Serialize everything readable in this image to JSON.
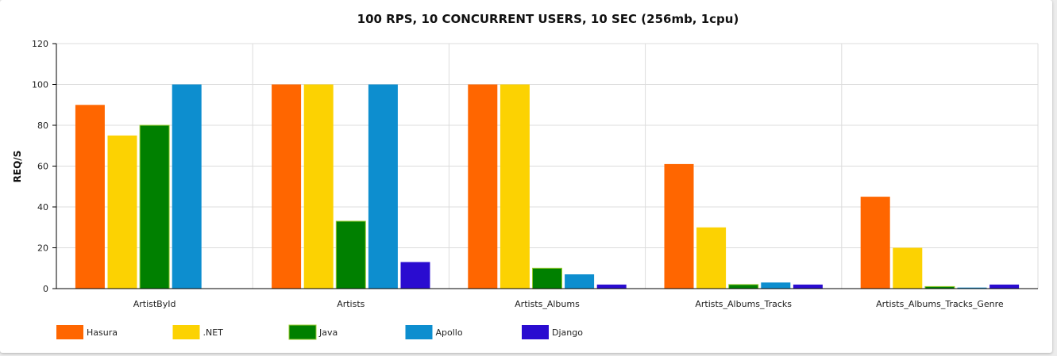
{
  "chart_data": {
    "type": "bar",
    "title": "100 RPS, 10 CONCURRENT USERS, 10 SEC (256mb, 1cpu)",
    "xlabel": "",
    "ylabel": "REQ/S",
    "ylim": [
      0,
      120
    ],
    "yticks": [
      0,
      20,
      40,
      60,
      80,
      100,
      120
    ],
    "grid": true,
    "legend_position": "bottom-left",
    "categories": [
      "ArtistById",
      "Artists",
      "Artists_Albums",
      "Artists_Albums_Tracks",
      "Artists_Albums_Tracks_Genre"
    ],
    "series": [
      {
        "name": "Hasura",
        "color": "#ff6600",
        "values": [
          90,
          100,
          100,
          61,
          45
        ]
      },
      {
        "name": ".NET",
        "color": "#fcd202",
        "values": [
          75,
          100,
          100,
          30,
          20
        ]
      },
      {
        "name": "Java",
        "color": "#008000",
        "values": [
          80,
          33,
          10,
          2,
          1
        ]
      },
      {
        "name": "Apollo",
        "color": "#0d8ecf",
        "values": [
          100,
          100,
          7,
          3,
          0.5
        ]
      },
      {
        "name": "Django",
        "color": "#2a0cd0",
        "values": [
          0,
          13,
          2,
          2,
          2
        ]
      }
    ]
  }
}
